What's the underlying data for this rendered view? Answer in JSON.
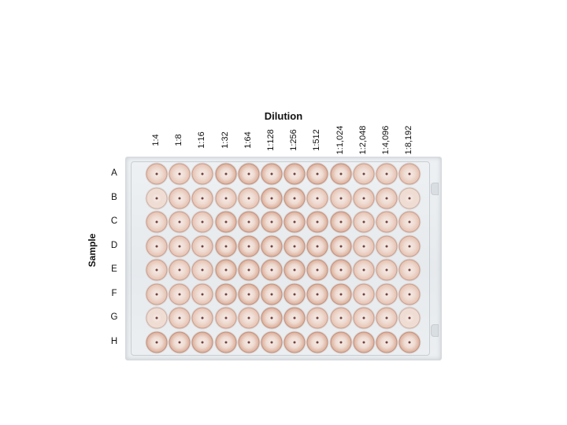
{
  "axis": {
    "x_title": "Dilution",
    "y_title": "Sample"
  },
  "columns": [
    "1:4",
    "1:8",
    "1:16",
    "1:32",
    "1:64",
    "1:128",
    "1:256",
    "1:512",
    "1:1,024",
    "1:2,048",
    "1:4,096",
    "1:8,192"
  ],
  "rows": [
    "A",
    "B",
    "C",
    "D",
    "E",
    "F",
    "G",
    "H"
  ],
  "colors": {
    "plate": "#e9edf0",
    "well_light": "#efdcd3",
    "well_mid": "#e3b8a4",
    "well_dark": "#d59f86",
    "pellet": "#5a231e"
  }
}
